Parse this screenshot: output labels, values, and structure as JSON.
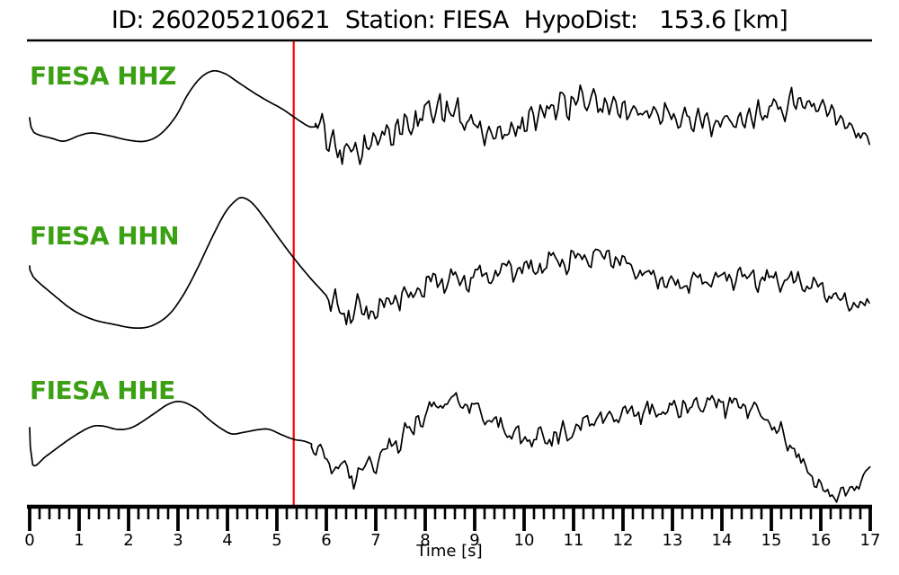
{
  "header": {
    "id_label": "ID: 260205210621",
    "station_label": "Station: FIESA",
    "hypodist_label": "HypoDist:   153.6 [km]",
    "event_id": "260205210621",
    "station": "FIESA",
    "hypodist_km": 153.6
  },
  "axis": {
    "label": "Time [s]",
    "tick_labels": [
      "0",
      "1",
      "2",
      "3",
      "4",
      "5",
      "6",
      "7",
      "8",
      "9",
      "10",
      "11",
      "12",
      "13",
      "14",
      "15",
      "16",
      "17"
    ],
    "major_step_s": 1,
    "minor_step_s": 0.2
  },
  "marker": {
    "time_s": 5.34,
    "color": "#ff0000"
  },
  "colors": {
    "trace": "#000000",
    "label_green": "#3ca014",
    "marker_red": "#ff0000",
    "axis": "#000000",
    "background": "#ffffff"
  },
  "chart_data": {
    "type": "line",
    "title": "ID: 260205210621   Station: FIESA   HypoDist:   153.6 [km]",
    "xlabel": "Time [s]",
    "xlim": [
      0,
      17
    ],
    "grid": false,
    "legend_position": "left-inline channel labels",
    "pick_marker_time_s": 5.34,
    "pick_marker_color": "#ff0000",
    "amplitude_units": "display px, canvas y-down (no amplitude scale shown)",
    "traces": [
      {
        "label": "FIESA HHZ",
        "channel": "HHZ",
        "color": "#000000",
        "label_color": "#3ca014",
        "seed": 42,
        "smooth_t_y": [
          [
            0,
            131
          ],
          [
            0.08,
            147
          ],
          [
            0.45,
            154
          ],
          [
            0.7,
            157
          ],
          [
            1.0,
            151
          ],
          [
            1.25,
            148
          ],
          [
            1.6,
            151
          ],
          [
            2.0,
            156
          ],
          [
            2.35,
            157
          ],
          [
            2.65,
            149
          ],
          [
            2.95,
            130
          ],
          [
            3.2,
            105
          ],
          [
            3.45,
            87
          ],
          [
            3.7,
            79
          ],
          [
            3.95,
            82
          ],
          [
            4.2,
            91
          ],
          [
            4.5,
            102
          ],
          [
            4.8,
            112
          ],
          [
            5.1,
            121
          ],
          [
            5.34,
            130
          ],
          [
            5.5,
            136
          ],
          [
            5.66,
            141
          ],
          [
            5.78,
            141
          ]
        ],
        "noise_envelope_t_center_amp": [
          [
            5.78,
            140,
            4
          ],
          [
            5.88,
            132,
            10
          ],
          [
            6.0,
            150,
            16
          ],
          [
            6.15,
            168,
            20
          ],
          [
            6.45,
            172,
            18
          ],
          [
            6.8,
            166,
            16
          ],
          [
            7.1,
            152,
            15
          ],
          [
            7.45,
            146,
            16
          ],
          [
            7.8,
            134,
            15
          ],
          [
            8.1,
            123,
            18
          ],
          [
            8.5,
            121,
            16
          ],
          [
            8.85,
            134,
            14
          ],
          [
            9.25,
            147,
            14
          ],
          [
            9.6,
            149,
            13
          ],
          [
            10.0,
            138,
            14
          ],
          [
            10.4,
            124,
            16
          ],
          [
            10.8,
            114,
            18
          ],
          [
            11.25,
            112,
            18
          ],
          [
            11.65,
            118,
            16
          ],
          [
            12.05,
            122,
            15
          ],
          [
            12.5,
            128,
            14
          ],
          [
            13.0,
            130,
            14
          ],
          [
            13.45,
            132,
            13
          ],
          [
            13.9,
            137,
            12
          ],
          [
            14.4,
            131,
            13
          ],
          [
            14.9,
            124,
            14
          ],
          [
            15.3,
            117,
            14
          ],
          [
            15.7,
            115,
            14
          ],
          [
            16.0,
            118,
            13
          ],
          [
            16.35,
            132,
            10
          ],
          [
            16.7,
            148,
            7
          ],
          [
            17.0,
            155,
            5
          ]
        ]
      },
      {
        "label": "FIESA HHN",
        "channel": "HHN",
        "color": "#000000",
        "label_color": "#3ca014",
        "seed": 7,
        "smooth_t_y": [
          [
            0,
            296
          ],
          [
            0.07,
            308
          ],
          [
            0.5,
            329
          ],
          [
            0.9,
            346
          ],
          [
            1.3,
            356
          ],
          [
            1.7,
            361
          ],
          [
            2.1,
            365
          ],
          [
            2.45,
            363
          ],
          [
            2.8,
            351
          ],
          [
            3.1,
            329
          ],
          [
            3.4,
            298
          ],
          [
            3.7,
            263
          ],
          [
            3.95,
            237
          ],
          [
            4.15,
            224
          ],
          [
            4.3,
            220
          ],
          [
            4.5,
            226
          ],
          [
            4.75,
            243
          ],
          [
            5.0,
            262
          ],
          [
            5.2,
            277
          ],
          [
            5.34,
            287
          ],
          [
            5.5,
            298
          ],
          [
            5.7,
            311
          ],
          [
            5.9,
            323
          ],
          [
            6.0,
            329
          ]
        ],
        "noise_envelope_t_center_amp": [
          [
            6.0,
            332,
            8
          ],
          [
            6.2,
            345,
            16
          ],
          [
            6.5,
            350,
            15
          ],
          [
            6.85,
            345,
            13
          ],
          [
            7.2,
            339,
            12
          ],
          [
            7.6,
            330,
            13
          ],
          [
            8.0,
            320,
            15
          ],
          [
            8.35,
            309,
            15
          ],
          [
            8.7,
            309,
            13
          ],
          [
            9.2,
            305,
            13
          ],
          [
            9.7,
            300,
            12
          ],
          [
            10.2,
            296,
            13
          ],
          [
            10.7,
            289,
            14
          ],
          [
            11.15,
            285,
            13
          ],
          [
            11.55,
            286,
            12
          ],
          [
            11.95,
            292,
            12
          ],
          [
            12.4,
            303,
            11
          ],
          [
            12.85,
            313,
            10
          ],
          [
            13.1,
            317,
            13
          ],
          [
            13.5,
            311,
            10
          ],
          [
            14.0,
            308,
            11
          ],
          [
            14.5,
            308,
            12
          ],
          [
            15.0,
            309,
            12
          ],
          [
            15.5,
            312,
            11
          ],
          [
            15.95,
            320,
            10
          ],
          [
            16.4,
            332,
            8
          ],
          [
            16.75,
            341,
            7
          ],
          [
            17.0,
            338,
            5
          ]
        ]
      },
      {
        "label": "FIESA HHE",
        "channel": "HHE",
        "color": "#000000",
        "label_color": "#3ca014",
        "seed": 19,
        "smooth_t_y": [
          [
            0,
            476
          ],
          [
            0.06,
            517
          ],
          [
            0.35,
            507
          ],
          [
            0.8,
            489
          ],
          [
            1.2,
            476
          ],
          [
            1.45,
            474
          ],
          [
            1.8,
            478
          ],
          [
            2.1,
            475
          ],
          [
            2.5,
            461
          ],
          [
            2.8,
            450
          ],
          [
            3.05,
            447
          ],
          [
            3.35,
            454
          ],
          [
            3.65,
            468
          ],
          [
            3.9,
            478
          ],
          [
            4.1,
            483
          ],
          [
            4.35,
            481
          ],
          [
            4.65,
            478
          ],
          [
            4.85,
            478
          ],
          [
            5.1,
            484
          ],
          [
            5.34,
            489
          ],
          [
            5.55,
            491
          ],
          [
            5.7,
            494
          ]
        ],
        "noise_envelope_t_center_amp": [
          [
            5.7,
            497,
            5
          ],
          [
            5.95,
            510,
            14
          ],
          [
            6.25,
            523,
            15
          ],
          [
            6.55,
            528,
            14
          ],
          [
            6.9,
            517,
            13
          ],
          [
            7.3,
            498,
            13
          ],
          [
            7.7,
            478,
            13
          ],
          [
            8.1,
            458,
            12
          ],
          [
            8.45,
            446,
            10
          ],
          [
            8.8,
            448,
            11
          ],
          [
            9.2,
            463,
            12
          ],
          [
            9.6,
            477,
            12
          ],
          [
            10.0,
            487,
            13
          ],
          [
            10.5,
            487,
            13
          ],
          [
            10.95,
            480,
            12
          ],
          [
            11.4,
            469,
            12
          ],
          [
            11.9,
            461,
            10
          ],
          [
            12.4,
            458,
            11
          ],
          [
            12.9,
            455,
            10
          ],
          [
            13.4,
            452,
            11
          ],
          [
            13.9,
            448,
            11
          ],
          [
            14.4,
            451,
            11
          ],
          [
            14.75,
            459,
            10
          ],
          [
            15.1,
            477,
            10
          ],
          [
            15.5,
            505,
            10
          ],
          [
            15.9,
            536,
            9
          ],
          [
            16.2,
            551,
            7
          ],
          [
            16.5,
            549,
            7
          ],
          [
            16.8,
            537,
            6
          ],
          [
            17.0,
            521,
            4
          ]
        ]
      }
    ]
  }
}
